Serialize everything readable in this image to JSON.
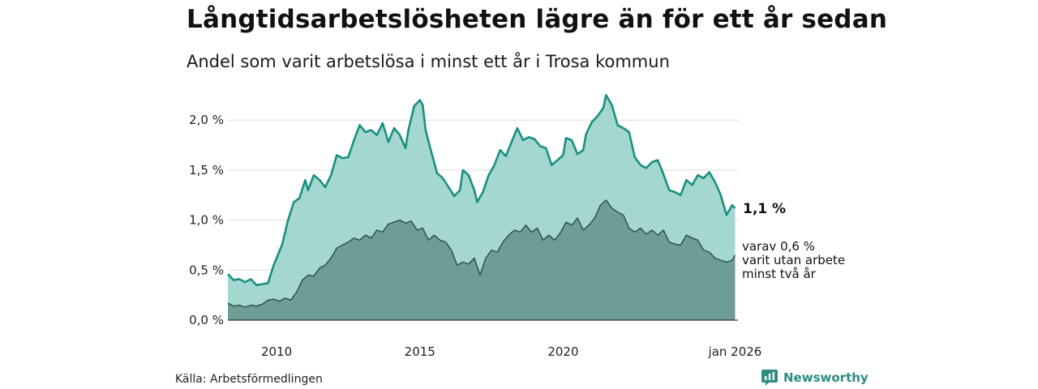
{
  "title": "Långtidsarbetslösheten lägre än för ett år sedan",
  "subtitle": "Andel som varit arbetslösa i minst ett år i Trosa kommun",
  "source": "Källa: Arbetsförmedlingen",
  "brand": {
    "name": "Newsworthy",
    "icon": "newsworthy-logo-icon"
  },
  "colors": {
    "upper_line": "#1a9080",
    "upper_fill": "#a3d7d0",
    "lower_line": "#2b4c48",
    "lower_fill": "#6e9c96",
    "grid": "#dddddd",
    "baseline": "#333333",
    "brand": "#2c8c80"
  },
  "chart_data": {
    "type": "area",
    "x_unit": "year (decimal)",
    "xlim": [
      2008.3,
      2026.1
    ],
    "ylim": [
      0,
      2.35
    ],
    "xticks": [
      {
        "value": 2010,
        "label": "2010"
      },
      {
        "value": 2015,
        "label": "2015"
      },
      {
        "value": 2020,
        "label": "2020"
      },
      {
        "value": 2026.0,
        "label": "jan 2026"
      }
    ],
    "yticks": [
      {
        "value": 0,
        "label": "0,0 %"
      },
      {
        "value": 0.5,
        "label": "0,5 %"
      },
      {
        "value": 1.0,
        "label": "1,0 %"
      },
      {
        "value": 1.5,
        "label": "1,5 %"
      },
      {
        "value": 2.0,
        "label": "2,0 %"
      }
    ],
    "grid": true,
    "series": [
      {
        "name": "Varit arbetslösa minst ett år",
        "end_label": "1,1 %",
        "points": [
          [
            2008.3,
            0.46
          ],
          [
            2008.5,
            0.4
          ],
          [
            2008.7,
            0.41
          ],
          [
            2008.9,
            0.38
          ],
          [
            2009.1,
            0.41
          ],
          [
            2009.3,
            0.35
          ],
          [
            2009.5,
            0.36
          ],
          [
            2009.7,
            0.37
          ],
          [
            2009.9,
            0.55
          ],
          [
            2010.0,
            0.62
          ],
          [
            2010.2,
            0.76
          ],
          [
            2010.4,
            1.0
          ],
          [
            2010.6,
            1.18
          ],
          [
            2010.8,
            1.22
          ],
          [
            2011.0,
            1.4
          ],
          [
            2011.1,
            1.3
          ],
          [
            2011.3,
            1.45
          ],
          [
            2011.5,
            1.4
          ],
          [
            2011.7,
            1.33
          ],
          [
            2011.9,
            1.45
          ],
          [
            2012.1,
            1.65
          ],
          [
            2012.3,
            1.62
          ],
          [
            2012.5,
            1.63
          ],
          [
            2012.7,
            1.8
          ],
          [
            2012.9,
            1.95
          ],
          [
            2013.1,
            1.88
          ],
          [
            2013.3,
            1.9
          ],
          [
            2013.5,
            1.85
          ],
          [
            2013.7,
            1.97
          ],
          [
            2013.9,
            1.78
          ],
          [
            2014.1,
            1.92
          ],
          [
            2014.3,
            1.85
          ],
          [
            2014.5,
            1.72
          ],
          [
            2014.6,
            1.9
          ],
          [
            2014.8,
            2.14
          ],
          [
            2015.0,
            2.2
          ],
          [
            2015.1,
            2.15
          ],
          [
            2015.2,
            1.9
          ],
          [
            2015.4,
            1.68
          ],
          [
            2015.6,
            1.47
          ],
          [
            2015.8,
            1.42
          ],
          [
            2016.0,
            1.33
          ],
          [
            2016.2,
            1.24
          ],
          [
            2016.4,
            1.3
          ],
          [
            2016.5,
            1.5
          ],
          [
            2016.7,
            1.45
          ],
          [
            2016.9,
            1.3
          ],
          [
            2017.0,
            1.18
          ],
          [
            2017.2,
            1.28
          ],
          [
            2017.4,
            1.45
          ],
          [
            2017.6,
            1.55
          ],
          [
            2017.8,
            1.7
          ],
          [
            2018.0,
            1.64
          ],
          [
            2018.2,
            1.78
          ],
          [
            2018.4,
            1.92
          ],
          [
            2018.6,
            1.8
          ],
          [
            2018.8,
            1.83
          ],
          [
            2019.0,
            1.81
          ],
          [
            2019.2,
            1.74
          ],
          [
            2019.4,
            1.72
          ],
          [
            2019.6,
            1.55
          ],
          [
            2019.8,
            1.6
          ],
          [
            2020.0,
            1.65
          ],
          [
            2020.1,
            1.82
          ],
          [
            2020.3,
            1.8
          ],
          [
            2020.5,
            1.66
          ],
          [
            2020.7,
            1.7
          ],
          [
            2020.8,
            1.86
          ],
          [
            2021.0,
            1.98
          ],
          [
            2021.2,
            2.04
          ],
          [
            2021.4,
            2.12
          ],
          [
            2021.5,
            2.25
          ],
          [
            2021.7,
            2.15
          ],
          [
            2021.9,
            1.95
          ],
          [
            2022.1,
            1.92
          ],
          [
            2022.3,
            1.88
          ],
          [
            2022.5,
            1.63
          ],
          [
            2022.7,
            1.55
          ],
          [
            2022.9,
            1.52
          ],
          [
            2023.1,
            1.58
          ],
          [
            2023.3,
            1.6
          ],
          [
            2023.5,
            1.46
          ],
          [
            2023.7,
            1.3
          ],
          [
            2023.9,
            1.28
          ],
          [
            2024.1,
            1.25
          ],
          [
            2024.3,
            1.4
          ],
          [
            2024.5,
            1.35
          ],
          [
            2024.7,
            1.45
          ],
          [
            2024.9,
            1.42
          ],
          [
            2025.1,
            1.48
          ],
          [
            2025.3,
            1.38
          ],
          [
            2025.5,
            1.25
          ],
          [
            2025.7,
            1.05
          ],
          [
            2025.9,
            1.15
          ],
          [
            2026.0,
            1.12
          ]
        ]
      },
      {
        "name": "varav varit utan arbete minst två år",
        "end_label": [
          "varav 0,6 %",
          "varit utan arbete",
          "minst två år"
        ],
        "points": [
          [
            2008.3,
            0.17
          ],
          [
            2008.5,
            0.14
          ],
          [
            2008.7,
            0.15
          ],
          [
            2008.9,
            0.13
          ],
          [
            2009.1,
            0.15
          ],
          [
            2009.3,
            0.14
          ],
          [
            2009.5,
            0.16
          ],
          [
            2009.7,
            0.2
          ],
          [
            2009.9,
            0.21
          ],
          [
            2010.1,
            0.19
          ],
          [
            2010.3,
            0.22
          ],
          [
            2010.5,
            0.2
          ],
          [
            2010.7,
            0.28
          ],
          [
            2010.9,
            0.4
          ],
          [
            2011.1,
            0.45
          ],
          [
            2011.3,
            0.44
          ],
          [
            2011.5,
            0.52
          ],
          [
            2011.7,
            0.55
          ],
          [
            2011.9,
            0.62
          ],
          [
            2012.1,
            0.72
          ],
          [
            2012.3,
            0.75
          ],
          [
            2012.5,
            0.78
          ],
          [
            2012.7,
            0.82
          ],
          [
            2012.9,
            0.8
          ],
          [
            2013.1,
            0.85
          ],
          [
            2013.3,
            0.82
          ],
          [
            2013.5,
            0.9
          ],
          [
            2013.7,
            0.88
          ],
          [
            2013.9,
            0.96
          ],
          [
            2014.1,
            0.98
          ],
          [
            2014.3,
            1.0
          ],
          [
            2014.5,
            0.97
          ],
          [
            2014.7,
            0.99
          ],
          [
            2014.9,
            0.9
          ],
          [
            2015.1,
            0.92
          ],
          [
            2015.3,
            0.8
          ],
          [
            2015.5,
            0.85
          ],
          [
            2015.7,
            0.8
          ],
          [
            2015.9,
            0.78
          ],
          [
            2016.1,
            0.7
          ],
          [
            2016.3,
            0.55
          ],
          [
            2016.5,
            0.58
          ],
          [
            2016.7,
            0.56
          ],
          [
            2016.9,
            0.62
          ],
          [
            2017.1,
            0.45
          ],
          [
            2017.3,
            0.62
          ],
          [
            2017.5,
            0.7
          ],
          [
            2017.7,
            0.68
          ],
          [
            2017.9,
            0.78
          ],
          [
            2018.1,
            0.85
          ],
          [
            2018.3,
            0.9
          ],
          [
            2018.5,
            0.88
          ],
          [
            2018.7,
            0.95
          ],
          [
            2018.9,
            0.88
          ],
          [
            2019.1,
            0.92
          ],
          [
            2019.3,
            0.8
          ],
          [
            2019.5,
            0.85
          ],
          [
            2019.7,
            0.8
          ],
          [
            2019.9,
            0.87
          ],
          [
            2020.1,
            0.98
          ],
          [
            2020.3,
            0.95
          ],
          [
            2020.5,
            1.02
          ],
          [
            2020.7,
            0.9
          ],
          [
            2020.9,
            0.95
          ],
          [
            2021.1,
            1.02
          ],
          [
            2021.3,
            1.15
          ],
          [
            2021.5,
            1.2
          ],
          [
            2021.7,
            1.12
          ],
          [
            2021.9,
            1.08
          ],
          [
            2022.1,
            1.05
          ],
          [
            2022.3,
            0.92
          ],
          [
            2022.5,
            0.88
          ],
          [
            2022.7,
            0.92
          ],
          [
            2022.9,
            0.86
          ],
          [
            2023.1,
            0.9
          ],
          [
            2023.3,
            0.85
          ],
          [
            2023.5,
            0.9
          ],
          [
            2023.7,
            0.78
          ],
          [
            2023.9,
            0.76
          ],
          [
            2024.1,
            0.75
          ],
          [
            2024.3,
            0.85
          ],
          [
            2024.5,
            0.82
          ],
          [
            2024.7,
            0.8
          ],
          [
            2024.9,
            0.7
          ],
          [
            2025.1,
            0.68
          ],
          [
            2025.3,
            0.62
          ],
          [
            2025.5,
            0.6
          ],
          [
            2025.7,
            0.58
          ],
          [
            2025.9,
            0.6
          ],
          [
            2026.0,
            0.65
          ]
        ]
      }
    ]
  }
}
